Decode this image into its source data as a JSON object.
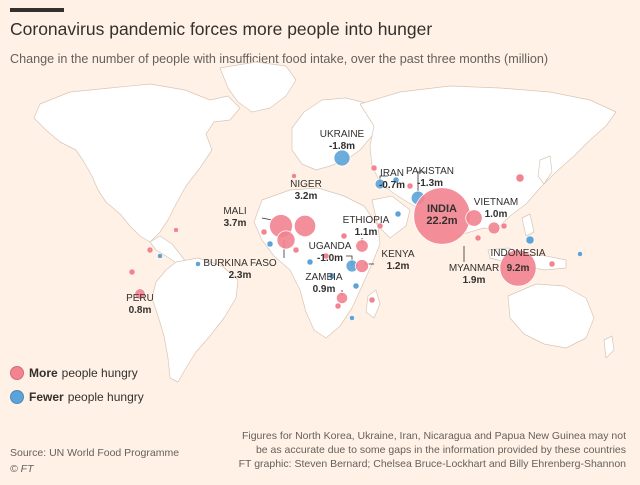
{
  "title": "Coronavirus pandemic forces more people into hunger",
  "subtitle": "Change in the number of people with insufficient food intake, over the past three months (million)",
  "colors": {
    "more": "#f2838f",
    "fewer": "#5ba3d9",
    "land": "#ffffff",
    "border": "#d9c6b6",
    "background": "#fff1e5"
  },
  "legend": {
    "more": {
      "bold": "More",
      "rest": "people hungry"
    },
    "fewer": {
      "bold": "Fewer",
      "rest": "people hungry"
    }
  },
  "countries": [
    {
      "name": "UKRAINE",
      "value": "-1.8m",
      "change": -1.8
    },
    {
      "name": "IRAN",
      "value": "-0.7m",
      "change": -0.7
    },
    {
      "name": "PAKISTAN",
      "value": "-1.3m",
      "change": -1.3
    },
    {
      "name": "NIGER",
      "value": "3.2m",
      "change": 3.2
    },
    {
      "name": "MALI",
      "value": "3.7m",
      "change": 3.7
    },
    {
      "name": "ETHIOPIA",
      "value": "1.1m",
      "change": 1.1
    },
    {
      "name": "INDIA",
      "value": "22.2m",
      "change": 22.2
    },
    {
      "name": "VIETNAM",
      "value": "1.0m",
      "change": 1.0
    },
    {
      "name": "UGANDA",
      "value": "-1.0m",
      "change": -1.0
    },
    {
      "name": "KENYA",
      "value": "1.2m",
      "change": 1.2
    },
    {
      "name": "BURKINA FASO",
      "value": "2.3m",
      "change": 2.3
    },
    {
      "name": "ZAMBIA",
      "value": "0.9m",
      "change": 0.9
    },
    {
      "name": "INDONESIA",
      "value": "9.2m",
      "change": 9.2
    },
    {
      "name": "MYANMAR",
      "value": "1.9m",
      "change": 1.9
    },
    {
      "name": "PERU",
      "value": "0.8m",
      "change": 0.8
    }
  ],
  "source": "Source: UN World Food Programme",
  "copyright": "© FT",
  "notes": {
    "line1": "Figures for North Korea, Ukraine, Iran, Nicaragua and Papua New Guinea may not",
    "line2": "be as accurate due to some gaps in the information provided by these countries",
    "line3": "FT graphic: Steven Bernard; Chelsea Bruce-Lockhart and Billy Ehrenberg-Shannon"
  }
}
